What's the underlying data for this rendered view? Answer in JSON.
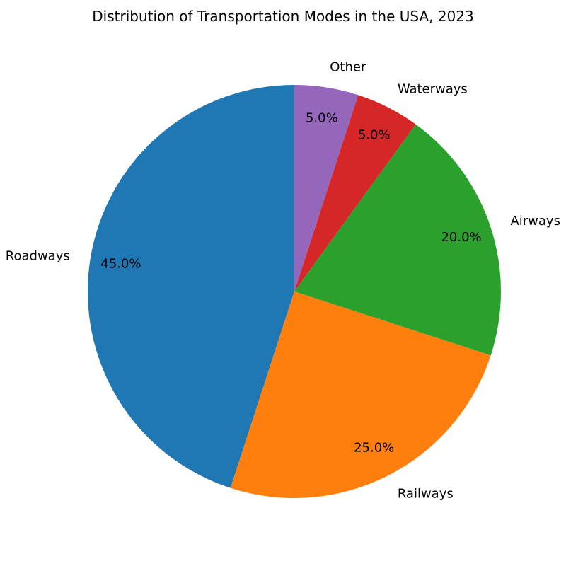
{
  "chart_data": {
    "type": "pie",
    "title": "Distribution of Transportation Modes in the USA, 2023",
    "categories": [
      "Roadways",
      "Railways",
      "Airways",
      "Waterways",
      "Other"
    ],
    "values": [
      45.0,
      25.0,
      20.0,
      5.0,
      5.0
    ],
    "value_labels": [
      "45.0%",
      "25.0%",
      "20.0%",
      "5.0%",
      "5.0%"
    ],
    "colors": [
      "#1f77b4",
      "#ff7f0e",
      "#2ca02c",
      "#d62728",
      "#9467bd"
    ],
    "start_angle_deg": 90,
    "direction": "counterclockwise",
    "legend": "none"
  }
}
